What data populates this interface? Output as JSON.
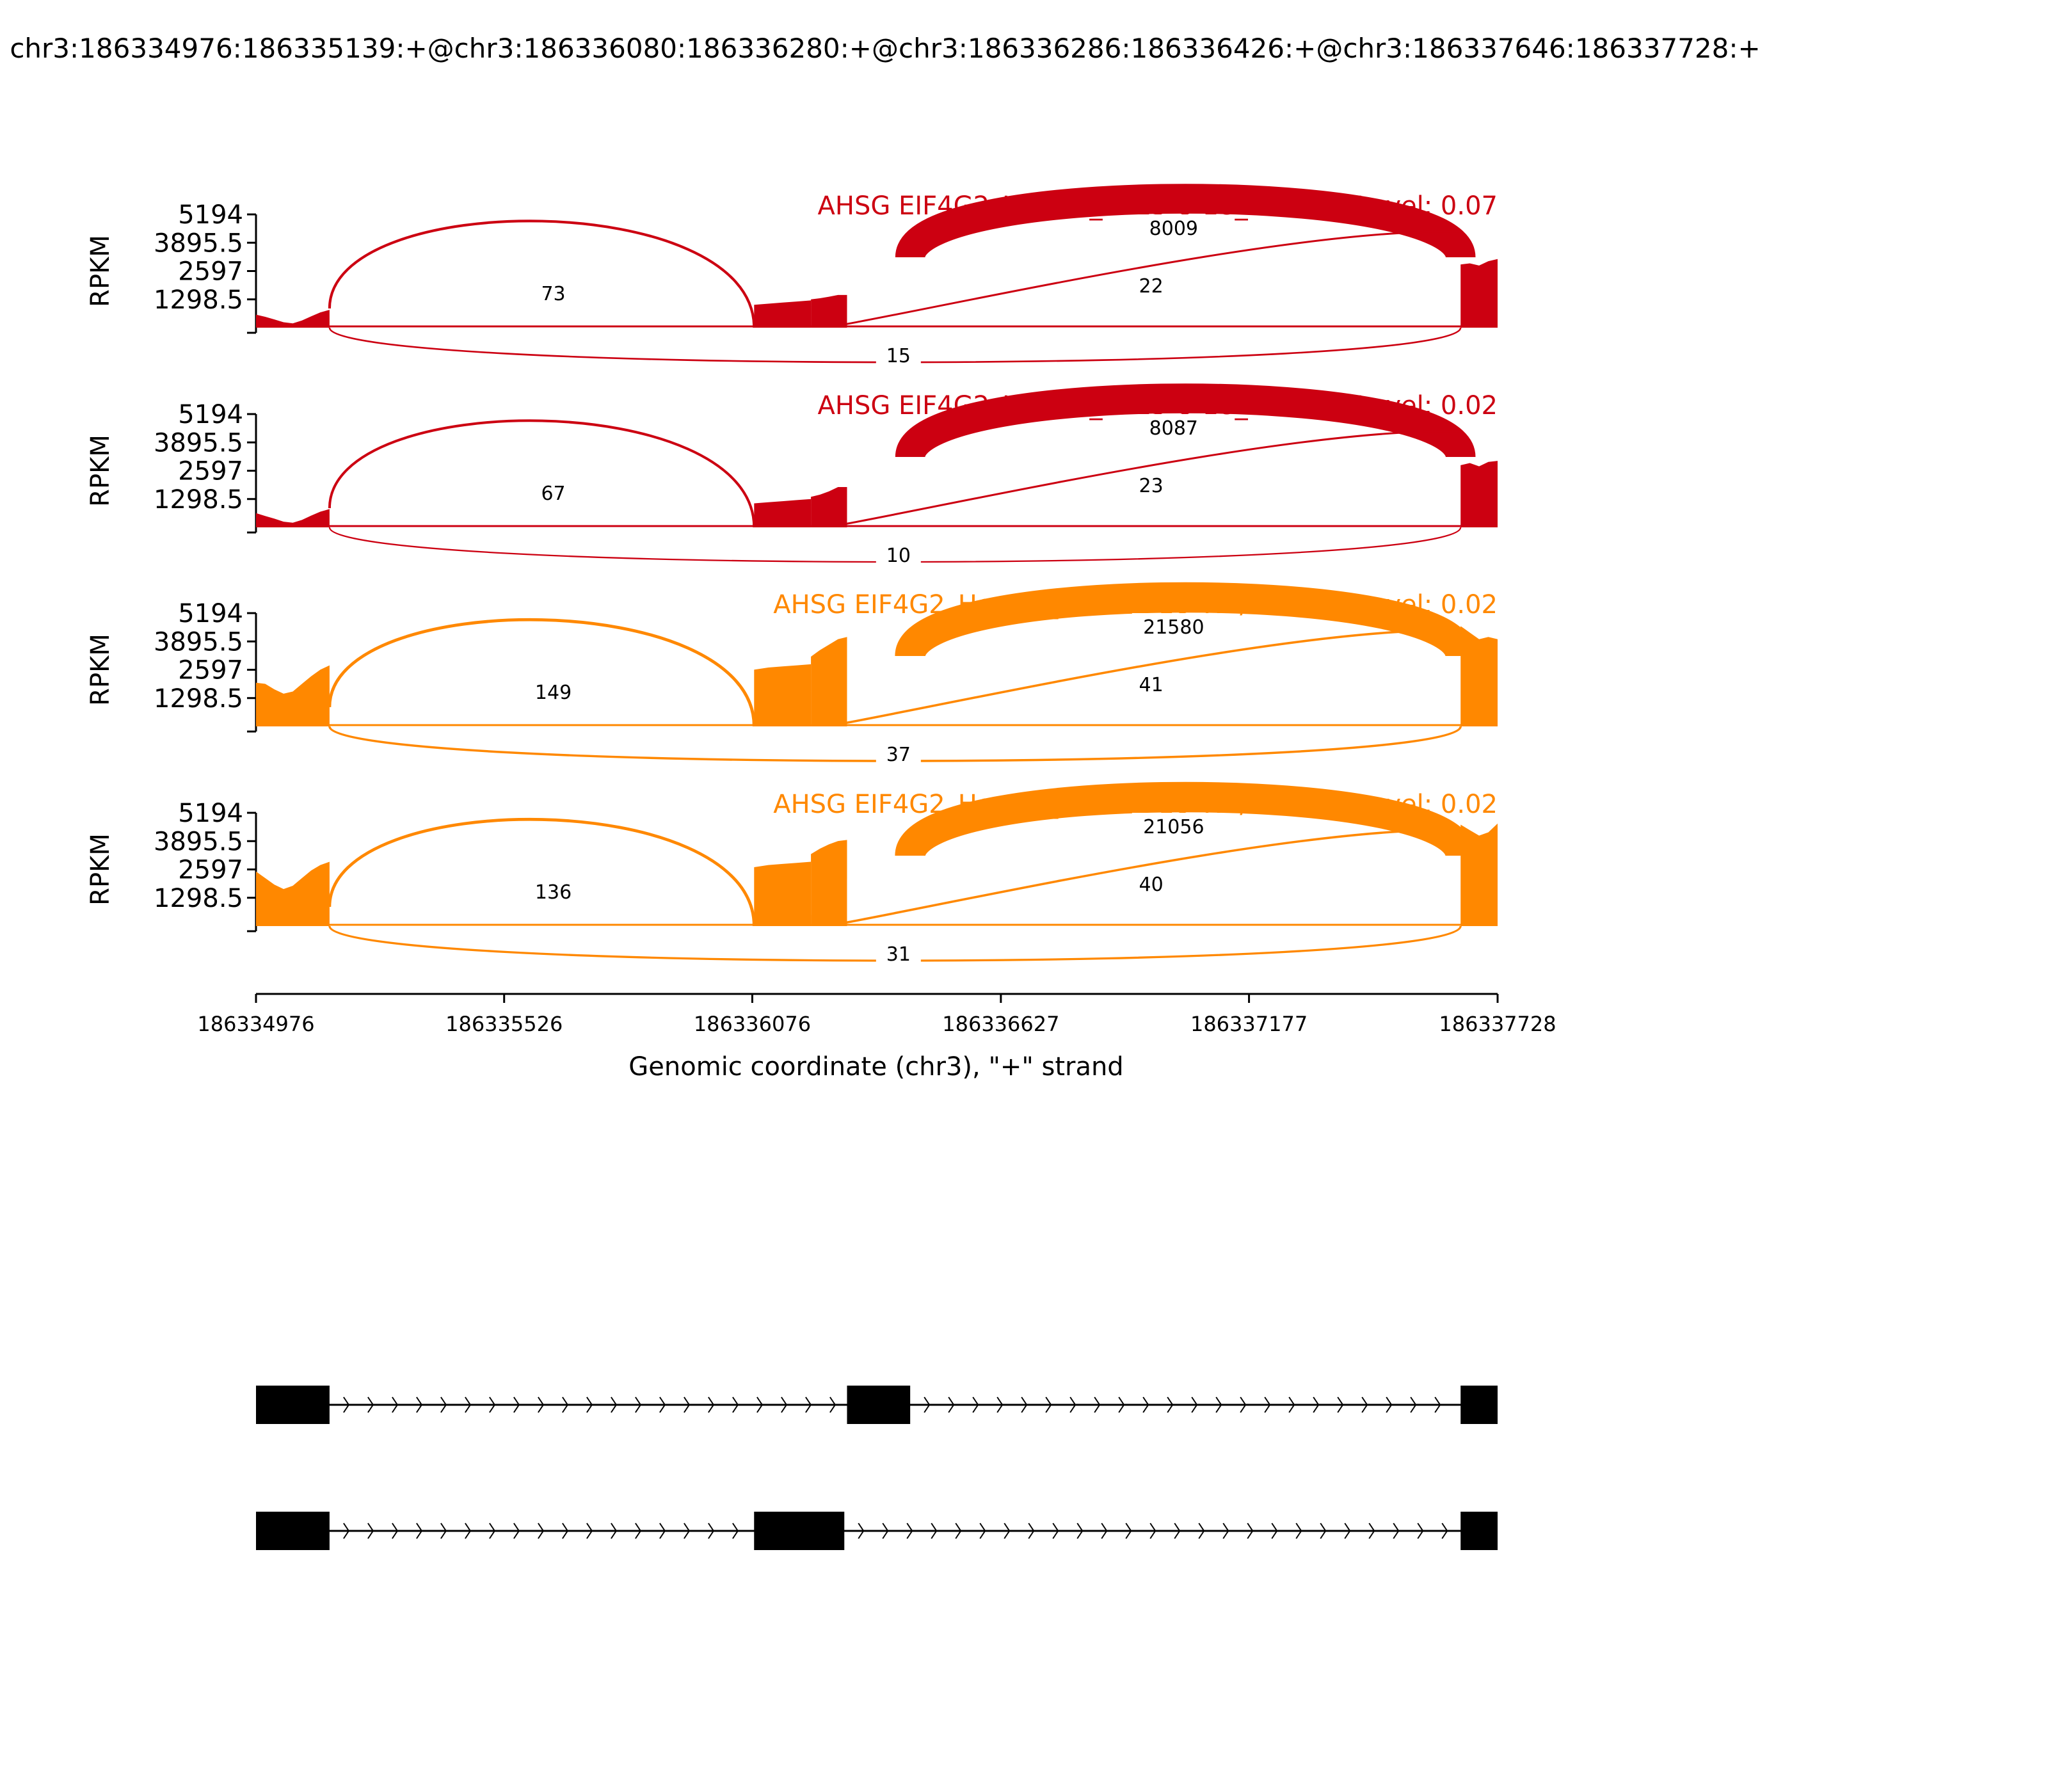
{
  "chart_data": {
    "type": "area",
    "title": "chr3:186334976:186335139:+@chr3:186336080:186336280:+@chr3:186336286:186336426:+@chr3:186337646:186337728:+",
    "ylabel": "RPKM",
    "xlabel": "Genomic coordinate (chr3), \"+\" strand",
    "xlim": [
      186334976,
      186337728
    ],
    "ylim": [
      0,
      5194
    ],
    "yticks": [
      "5194",
      "3895.5",
      "2597",
      "1298.5"
    ],
    "yticks_values": [
      5194,
      3895.5,
      2597,
      1298.5
    ],
    "xticks": [
      "186334976",
      "186335526",
      "186336076",
      "186336627",
      "186337177",
      "186337728"
    ],
    "xticks_values": [
      186334976,
      186335526,
      186336076,
      186336627,
      186337177,
      186337728
    ],
    "exons": [
      {
        "start": 186334976,
        "end": 186335139
      },
      {
        "start": 186336080,
        "end": 186336280
      },
      {
        "start": 186336286,
        "end": 186336426
      },
      {
        "start": 186337646,
        "end": 186337728
      }
    ],
    "isoforms": [
      {
        "exons": [
          [
            186334976,
            186335139
          ],
          [
            186336286,
            186336426
          ],
          [
            186337646,
            186337728
          ]
        ]
      },
      {
        "exons": [
          [
            186334976,
            186335139
          ],
          [
            186336080,
            186336280
          ],
          [
            186337646,
            186337728
          ]
        ]
      }
    ],
    "series": [
      {
        "name": "AHSG EIF4G2_HepG2_2015-8-18_NC-1",
        "label": "AHSG EIF4G2_HepG2_2015-8-18_NC-1 IncLevel: 0.07",
        "color": "#cc0011",
        "coverage": [
          {
            "start": 186334976,
            "end": 186335139,
            "values": [
              600,
              500,
              380,
              250,
              200,
              330,
              520,
              700,
              820
            ]
          },
          {
            "start": 186336080,
            "end": 186336206,
            "values": [
              1050,
              1100,
              1150,
              1200,
              1250
            ]
          },
          {
            "start": 186336206,
            "end": 186336286,
            "values": [
              1300,
              1350,
              1420,
              1500,
              1500
            ]
          },
          {
            "start": 186337646,
            "end": 186337728,
            "values": [
              2900,
              2950,
              2850,
              3050,
              3150
            ]
          }
        ],
        "junctions": [
          {
            "start": 186335139,
            "end": 186336080,
            "count": "73",
            "count_value": 73,
            "side": "up",
            "label_x": 186335635
          },
          {
            "start": 186336426,
            "end": 186337646,
            "count": "8009",
            "count_value": 8009,
            "side": "up",
            "label_x": 186337010
          },
          {
            "start": 186336280,
            "end": 186337646,
            "count": "22",
            "count_value": 22,
            "side": "up",
            "label_x": 186336960
          },
          {
            "start": 186335139,
            "end": 186337646,
            "count": "15",
            "count_value": 15,
            "side": "down",
            "label_x": 186336400
          }
        ]
      },
      {
        "name": "AHSG EIF4G2_HepG2_2015-8-18_NC-2",
        "label": "AHSG EIF4G2_HepG2_2015-8-18_NC-2 IncLevel: 0.02",
        "color": "#cc0011",
        "coverage": [
          {
            "start": 186334976,
            "end": 186335139,
            "values": [
              650,
              520,
              400,
              260,
              210,
              340,
              540,
              720,
              840
            ]
          },
          {
            "start": 186336080,
            "end": 186336206,
            "values": [
              1100,
              1150,
              1200,
              1250,
              1300
            ]
          },
          {
            "start": 186336206,
            "end": 186336286,
            "values": [
              1400,
              1500,
              1650,
              1850,
              1850
            ]
          },
          {
            "start": 186337646,
            "end": 186337728,
            "values": [
              2850,
              2950,
              2800,
              3000,
              3050
            ]
          }
        ],
        "junctions": [
          {
            "start": 186335139,
            "end": 186336080,
            "count": "67",
            "count_value": 67,
            "side": "up",
            "label_x": 186335635
          },
          {
            "start": 186336426,
            "end": 186337646,
            "count": "8087",
            "count_value": 8087,
            "side": "up",
            "label_x": 186337010
          },
          {
            "start": 186336280,
            "end": 186337646,
            "count": "23",
            "count_value": 23,
            "side": "up",
            "label_x": 186336960
          },
          {
            "start": 186335139,
            "end": 186337646,
            "count": "10",
            "count_value": 10,
            "side": "down",
            "label_x": 186336400
          }
        ]
      },
      {
        "name": "AHSG EIF4G2_HepG2_2015-8-18_KD/KO-1",
        "label": "AHSG EIF4G2_HepG2_2015-8-18_KD/KO-1 IncLevel: 0.02",
        "color": "#ff8800",
        "coverage": [
          {
            "start": 186334976,
            "end": 186335139,
            "values": [
              2000,
              1950,
              1700,
              1500,
              1600,
              1950,
              2300,
              2600,
              2800
            ]
          },
          {
            "start": 186336080,
            "end": 186336206,
            "values": [
              2600,
              2700,
              2750,
              2800,
              2850
            ]
          },
          {
            "start": 186336206,
            "end": 186336286,
            "values": [
              3200,
              3500,
              3750,
              4000,
              4100
            ]
          },
          {
            "start": 186337646,
            "end": 186337728,
            "values": [
              4600,
              4300,
              4000,
              4100,
              4000
            ]
          }
        ],
        "junctions": [
          {
            "start": 186335139,
            "end": 186336080,
            "count": "149",
            "count_value": 149,
            "side": "up",
            "label_x": 186335635
          },
          {
            "start": 186336426,
            "end": 186337646,
            "count": "21580",
            "count_value": 21580,
            "side": "up",
            "label_x": 186337010
          },
          {
            "start": 186336280,
            "end": 186337646,
            "count": "41",
            "count_value": 41,
            "side": "up",
            "label_x": 186336960
          },
          {
            "start": 186335139,
            "end": 186337646,
            "count": "37",
            "count_value": 37,
            "side": "down",
            "label_x": 186336400
          }
        ]
      },
      {
        "name": "AHSG EIF4G2_HepG2_2015-8-18_KD/KO-2",
        "label": "AHSG EIF4G2_HepG2_2015-8-18_KD/KO-2 IncLevel: 0.02",
        "color": "#ff8800",
        "coverage": [
          {
            "start": 186334976,
            "end": 186335139,
            "values": [
              2500,
              2200,
              1900,
              1700,
              1850,
              2200,
              2550,
              2800,
              2950
            ]
          },
          {
            "start": 186336080,
            "end": 186336206,
            "values": [
              2700,
              2800,
              2850,
              2900,
              2950
            ]
          },
          {
            "start": 186336206,
            "end": 186336286,
            "values": [
              3300,
              3550,
              3750,
              3900,
              3950
            ]
          },
          {
            "start": 186337646,
            "end": 186337728,
            "values": [
              4650,
              4400,
              4150,
              4300,
              4700
            ]
          }
        ],
        "junctions": [
          {
            "start": 186335139,
            "end": 186336080,
            "count": "136",
            "count_value": 136,
            "side": "up",
            "label_x": 186335635
          },
          {
            "start": 186336426,
            "end": 186337646,
            "count": "21056",
            "count_value": 21056,
            "side": "up",
            "label_x": 186337010
          },
          {
            "start": 186336280,
            "end": 186337646,
            "count": "40",
            "count_value": 40,
            "side": "up",
            "label_x": 186336960
          },
          {
            "start": 186335139,
            "end": 186337646,
            "count": "31",
            "count_value": 31,
            "side": "down",
            "label_x": 186336400
          }
        ]
      }
    ]
  }
}
